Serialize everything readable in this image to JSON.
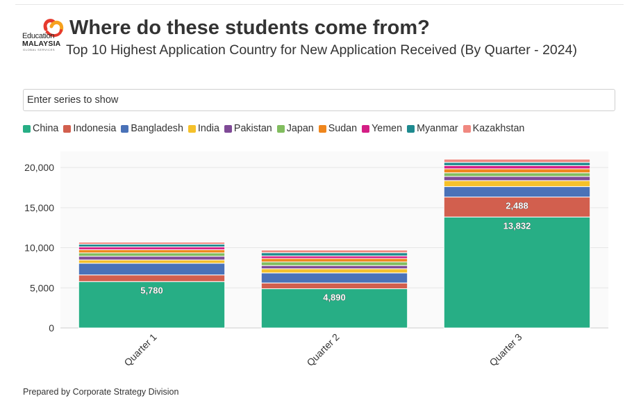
{
  "header": {
    "title": "Where do these students come from?",
    "subtitle": "Top 10 Highest Application Country for New Application Received (By Quarter - 2024)"
  },
  "logo": {
    "line1": "Education",
    "line2": "MALAYSIA",
    "line3": "GLOBAL SERVICES",
    "colors": [
      "#e63a2e",
      "#f6a21e"
    ]
  },
  "series_filter": {
    "placeholder": "Enter series to show",
    "value": ""
  },
  "footer": {
    "text": "Prepared by Corporate Strategy Division"
  },
  "chart_data": {
    "type": "bar",
    "stacked": true,
    "title": "Where do these students come from?",
    "subtitle": "Top 10 Highest Application Country for New Application Received (By Quarter - 2024)",
    "categories": [
      "Quarter 1",
      "Quarter 2",
      "Quarter 3"
    ],
    "series": [
      {
        "name": "China",
        "color": "#27ae85",
        "values": [
          5780,
          4890,
          13832
        ]
      },
      {
        "name": "Indonesia",
        "color": "#d25f4e",
        "values": [
          830,
          720,
          2488
        ]
      },
      {
        "name": "Bangladesh",
        "color": "#4a72b8",
        "values": [
          1450,
          1250,
          1300
        ]
      },
      {
        "name": "India",
        "color": "#f5c12b",
        "values": [
          420,
          520,
          750
        ]
      },
      {
        "name": "Pakistan",
        "color": "#7f4a96",
        "values": [
          460,
          400,
          520
        ]
      },
      {
        "name": "Japan",
        "color": "#82bd5f",
        "values": [
          420,
          450,
          450
        ]
      },
      {
        "name": "Sudan",
        "color": "#ef861d",
        "values": [
          400,
          430,
          500
        ]
      },
      {
        "name": "Yemen",
        "color": "#d41e85",
        "values": [
          350,
          320,
          400
        ]
      },
      {
        "name": "Myanmar",
        "color": "#1e8a8f",
        "values": [
          330,
          400,
          400
        ]
      },
      {
        "name": "Kazakhstan",
        "color": "#f08880",
        "values": [
          260,
          330,
          400
        ]
      }
    ],
    "data_labels": [
      {
        "series": "China",
        "category": "Quarter 1",
        "value": 5780,
        "text": "5,780"
      },
      {
        "series": "China",
        "category": "Quarter 2",
        "value": 4890,
        "text": "4,890"
      },
      {
        "series": "China",
        "category": "Quarter 3",
        "value": 13832,
        "text": "13,832"
      },
      {
        "series": "Indonesia",
        "category": "Quarter 3",
        "value": 2488,
        "text": "2,488"
      }
    ],
    "y_ticks": [
      0,
      5000,
      10000,
      15000,
      20000
    ],
    "y_tick_labels": [
      "0",
      "5,000",
      "10,000",
      "15,000",
      "20,000"
    ],
    "ylim": [
      0,
      22000
    ],
    "xlabel": "",
    "ylabel": "",
    "grid": true,
    "legend_position": "top-left"
  }
}
